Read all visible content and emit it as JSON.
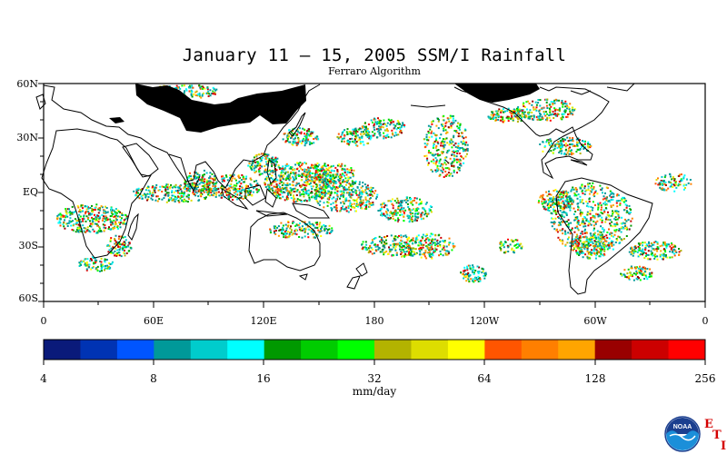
{
  "title": "January 11 – 15, 2005 SSM/I Rainfall",
  "subtitle": "Ferraro Algorithm",
  "lat_labels": [
    "60N",
    "30N",
    "EQ",
    "30S",
    "60S"
  ],
  "lon_labels": [
    "0",
    "60E",
    "120E",
    "180",
    "120W",
    "60W",
    "0"
  ],
  "colorbar": {
    "colors": [
      "#0a1a7a",
      "#0033b3",
      "#0055ff",
      "#009999",
      "#00cccc",
      "#00ffff",
      "#009900",
      "#00cc00",
      "#00ff00",
      "#b3b300",
      "#dddd00",
      "#ffff00",
      "#ff5500",
      "#ff7f00",
      "#ffa500",
      "#990000",
      "#cc0000",
      "#ff0000"
    ],
    "tick_labels": [
      "4",
      "8",
      "16",
      "32",
      "64",
      "128",
      "256"
    ],
    "units": "mm/day"
  },
  "logo": {
    "text": "NOAA",
    "corner_letters": [
      "E",
      "T",
      "I"
    ]
  },
  "chart_data": {
    "type": "heatmap",
    "title": "January 11 – 15, 2005 SSM/I Rainfall",
    "subtitle": "Ferraro Algorithm",
    "variable": "rainfall",
    "units": "mm/day",
    "period": "January 11 – 15, 2005",
    "lat_range": [
      -60,
      60
    ],
    "lon_range": [
      0,
      360
    ],
    "color_scale": "log2",
    "color_range": [
      4,
      256
    ],
    "colorbar_ticks": [
      4,
      8,
      16,
      32,
      64,
      128,
      256
    ]
  }
}
